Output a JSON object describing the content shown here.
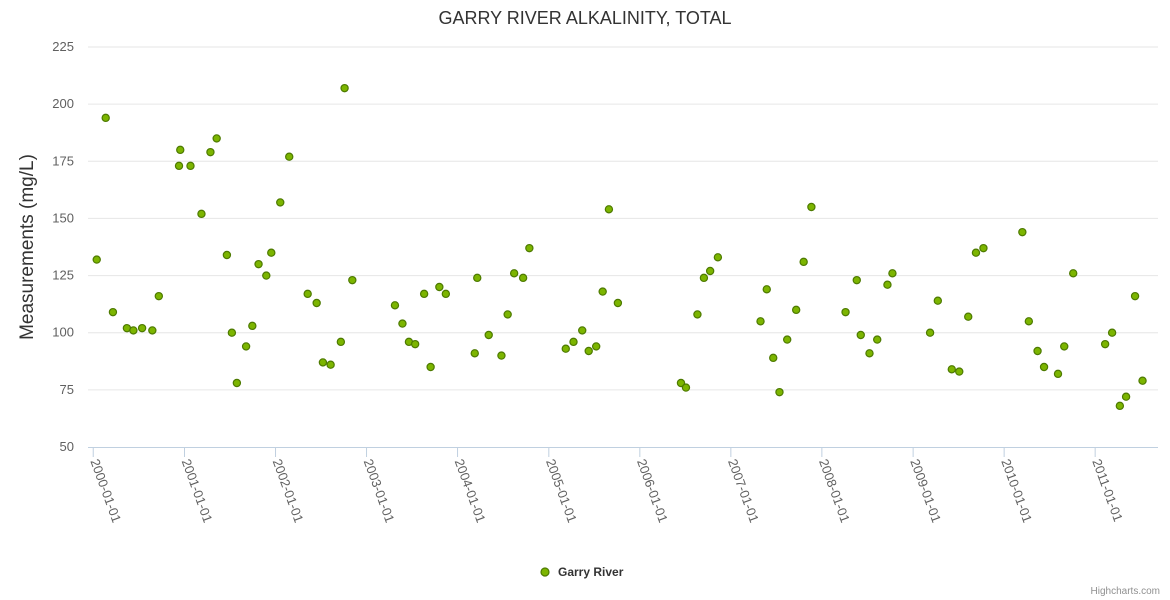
{
  "colors": {
    "series": "#7cb500",
    "series_stroke": "#4d7a00",
    "grid": "#e6e6e6",
    "axis": "#c0d0e0"
  },
  "credits": "Highcharts.com",
  "chart_data": {
    "type": "scatter",
    "title": "GARRY RIVER ALKALINITY, TOTAL",
    "ylabel": "Measurements (mg/L)",
    "xlabel": "",
    "ylim": [
      50,
      225
    ],
    "yticks": [
      50,
      75,
      100,
      125,
      150,
      175,
      200,
      225
    ],
    "xlim": [
      "1999-12-11",
      "2011-09-10"
    ],
    "xticks": [
      "2000-01-01",
      "2001-01-01",
      "2002-01-01",
      "2003-01-01",
      "2004-01-01",
      "2005-01-01",
      "2006-01-01",
      "2007-01-01",
      "2008-01-01",
      "2009-01-01",
      "2010-01-01",
      "2011-01-01"
    ],
    "grid": true,
    "legend_position": "bottom-center",
    "series": [
      {
        "name": "Garry River",
        "x": [
          "2000-01-15",
          "2000-02-20",
          "2000-03-20",
          "2000-05-15",
          "2000-06-10",
          "2000-07-15",
          "2000-08-25",
          "2000-09-20",
          "2000-12-10",
          "2000-12-15",
          "2001-01-25",
          "2001-03-10",
          "2001-04-15",
          "2001-05-10",
          "2001-06-20",
          "2001-07-10",
          "2001-07-30",
          "2001-09-05",
          "2001-09-30",
          "2001-10-25",
          "2001-11-25",
          "2001-12-15",
          "2002-01-20",
          "2002-02-25",
          "2002-05-10",
          "2002-06-15",
          "2002-07-10",
          "2002-08-10",
          "2002-09-20",
          "2002-10-05",
          "2002-11-05",
          "2003-04-25",
          "2003-05-25",
          "2003-06-20",
          "2003-07-15",
          "2003-08-20",
          "2003-09-15",
          "2003-10-20",
          "2003-11-15",
          "2004-03-10",
          "2004-03-20",
          "2004-05-05",
          "2004-06-25",
          "2004-07-20",
          "2004-08-15",
          "2004-09-20",
          "2004-10-15",
          "2005-03-10",
          "2005-04-10",
          "2005-05-15",
          "2005-06-10",
          "2005-07-10",
          "2005-08-05",
          "2005-08-30",
          "2005-10-05",
          "2006-06-15",
          "2006-07-05",
          "2006-08-20",
          "2006-09-15",
          "2006-10-10",
          "2006-11-10",
          "2007-04-30",
          "2007-05-25",
          "2007-06-20",
          "2007-07-15",
          "2007-08-15",
          "2007-09-20",
          "2007-10-20",
          "2007-11-20",
          "2008-04-05",
          "2008-05-20",
          "2008-06-05",
          "2008-07-10",
          "2008-08-10",
          "2008-09-20",
          "2008-10-10",
          "2009-03-10",
          "2009-04-10",
          "2009-06-05",
          "2009-07-05",
          "2009-08-10",
          "2009-09-10",
          "2009-10-10",
          "2010-03-15",
          "2010-04-10",
          "2010-05-15",
          "2010-06-10",
          "2010-08-05",
          "2010-08-30",
          "2010-10-05",
          "2011-02-10",
          "2011-03-10",
          "2011-04-10",
          "2011-05-05",
          "2011-06-10",
          "2011-07-10"
        ],
        "y": [
          132,
          194,
          109,
          102,
          101,
          102,
          101,
          116,
          173,
          180,
          173,
          152,
          179,
          185,
          134,
          100,
          78,
          94,
          103,
          130,
          125,
          135,
          157,
          177,
          117,
          113,
          87,
          86,
          96,
          207,
          123,
          112,
          104,
          96,
          95,
          117,
          85,
          120,
          117,
          91,
          124,
          99,
          90,
          108,
          126,
          124,
          137,
          93,
          96,
          101,
          92,
          94,
          118,
          154,
          113,
          78,
          76,
          108,
          124,
          127,
          133,
          105,
          119,
          89,
          74,
          97,
          110,
          131,
          155,
          109,
          123,
          99,
          91,
          97,
          121,
          126,
          100,
          114,
          84,
          83,
          107,
          135,
          137,
          144,
          105,
          92,
          85,
          82,
          94,
          126,
          95,
          100,
          68,
          72,
          116,
          79
        ]
      }
    ]
  }
}
